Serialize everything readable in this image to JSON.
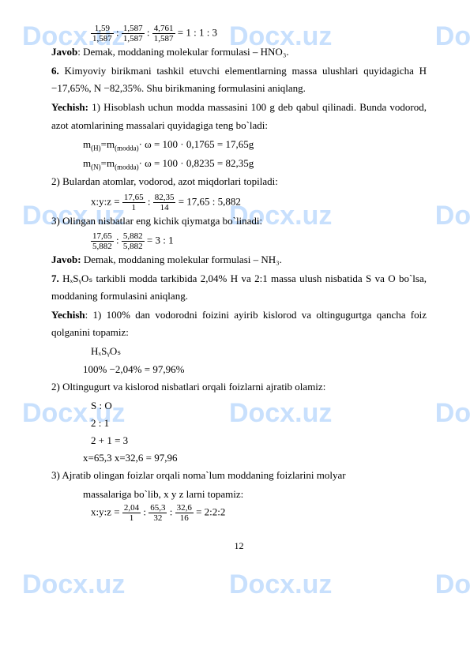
{
  "watermarks": {
    "left": "Docx.uz",
    "mid": "Docx.uz",
    "right": "Doc"
  },
  "lines": {
    "l1a": "1,59",
    "l1b": "1,587",
    "l1c": "1,587",
    "l1d": "1,587",
    "l1e": "4,761",
    "l1f": "1,587",
    "l1g": " = 1 : 1 : 3",
    "javob1a": "Javob",
    "javob1b": ": Demak, moddaning molekular formulasi – HNO₃.",
    "p6a": "6.",
    "p6b": " Kimyoviy birikmani tashkil etuvchi elementlarning massa ulushlari quyidagicha H −17,65%, N −82,35%. Shu birikmaning formulasini aniqlang.",
    "yech1a": "Yechish:",
    "yech1b": " 1) Hisoblash uchun modda massasini 100 g deb qabul qilinadi. Bunda vodorod, azot atomlarining massalari quyidagiga teng bo`ladi:",
    "mh": "m",
    "mh_sub": "(H)",
    "eq": "=m",
    "modda_sub": "(modda)",
    "mh_rest": "· ω = 100 · 0,1765 = 17,65g",
    "mn": "m",
    "mn_sub": "(N)",
    "mn_rest": "· ω = 100 · 0,8235 = 82,35g",
    "p2": "2) Bulardan atomlar, vodorod, azot miqdorlari topiladi:",
    "xyz1": "x:y:z = ",
    "f2a": "17,65",
    "f2b": "1",
    "f2c": "82,35",
    "f2d": "14",
    "f2e": " = 17,65 : 5,882",
    "p3": "3) Olingan nisbatlar eng kichik qiymatga bo`linadi:",
    "f3a": "17,65",
    "f3b": "5,882",
    "f3c": "5,882",
    "f3d": "5,882",
    "f3e": " = 3 : 1",
    "javob2a": "Javob:",
    "javob2b": " Demak, moddaning molekular formulasi – NH₃.",
    "p7a": "7.",
    "p7b": " HₓSᵧOₛ tarkibli modda tarkibida 2,04% H va 2:1 massa ulush nisbatida S va O bo`lsa, moddaning formulasini aniqlang.",
    "yech2a": "Yechish",
    "yech2b": ": 1) 100% dan vodorodni foizini ayirib kislorod va oltingugurtga qancha foiz qolganini topamiz:",
    "hxsyos": "HₓSᵧOₛ",
    "perc": "100% −2,04% = 97,96%",
    "p2b": "2) Oltingugurt va kislorod nisbatlari orqali foizlarni ajratib olamiz:",
    "so": "S : O",
    "r21": "2  :  1",
    "r213": "2 +  1 = 3",
    "xeq": "x=65,3 x=32,6 = 97,96",
    "p3b": "3) Ajratib olingan foizlar orqali noma`lum moddaning foizlarini molyar",
    "p3c": "massalariga bo`lib, x y z larni topamiz:",
    "xyz2": "x:y:z = ",
    "f4a": "2,04",
    "f4b": "1",
    "f4c": "65,3",
    "f4d": "32",
    "f4e": "32,6",
    "f4f": "16",
    "f4g": " = 2:2:2",
    "pagenum": "12"
  }
}
